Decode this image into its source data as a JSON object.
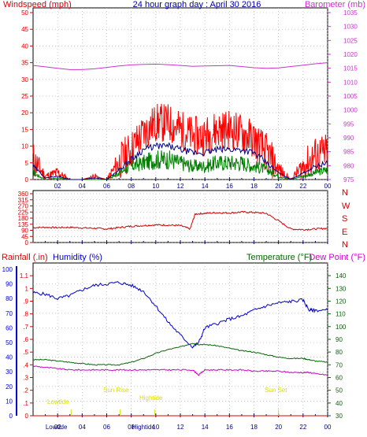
{
  "title": "24 hour graph day : April 30 2016",
  "colors": {
    "wind": "#ff0000",
    "wind_avg": "#000080",
    "gust": "#008000",
    "barometer": "#cc33cc",
    "direction": "#cc0000",
    "humidity": "#0000cc",
    "temperature": "#006600",
    "dewpoint": "#cc00cc",
    "rain": "#dd0000",
    "tide": "#dddd00",
    "frame": "#000000",
    "grid": "#aaaaaa",
    "time_tick": "#000080"
  },
  "time_labels": [
    "02",
    "04",
    "06",
    "08",
    "10",
    "12",
    "14",
    "16",
    "18",
    "20",
    "22",
    "00"
  ],
  "panel1": {
    "left_label": "Windspeed (mph)",
    "right_label": "Barometer (mb)",
    "left_ticks": [
      "0",
      "5",
      "10",
      "15",
      "20",
      "25",
      "30",
      "35",
      "40",
      "45",
      "50"
    ],
    "right_ticks": [
      "975",
      "980",
      "985",
      "990",
      "995",
      "1000",
      "1005",
      "1010",
      "1015",
      "1020",
      "1025",
      "1030",
      "1035"
    ]
  },
  "panel2": {
    "left_ticks": [
      "0",
      "45",
      "90",
      "135",
      "180",
      "225",
      "270",
      "315",
      "360"
    ],
    "directions": [
      "N",
      "W",
      "S",
      "E",
      "N"
    ]
  },
  "panel3": {
    "rain_label": "Rainfall (.in)",
    "humidity_label": "Humidity (%)",
    "temp_label": "Temperature (°F)",
    "dew_label": "Dew Point (°F)",
    "rain_ticks": [
      "0",
      ".1",
      ".2",
      ".3",
      ".4",
      ".5",
      ".6",
      ".7",
      ".8",
      ".9",
      "1",
      "1.1"
    ],
    "humidity_ticks": [
      "0",
      "10",
      "20",
      "30",
      "40",
      "50",
      "60",
      "70",
      "80",
      "90",
      "100"
    ],
    "temp_ticks": [
      "30",
      "40",
      "50",
      "60",
      "70",
      "80",
      "90",
      "100",
      "110",
      "120",
      "130",
      "140"
    ],
    "annotations": {
      "low_tide": "Lowtide",
      "sun_rise": "Sun Rise",
      "high_tide": "Hightide",
      "sun_set": "Sun Set"
    },
    "bottom_labels": {
      "lowtide": "Lowtide",
      "hightide": "Hightide"
    }
  },
  "chart_data": [
    {
      "type": "line",
      "title": "24 hour graph day : April 30 2016",
      "xlabel": "",
      "ylabel": "Windspeed (mph)",
      "y2label": "Barometer (mb)",
      "xlim": [
        0,
        24
      ],
      "ylim": [
        0,
        50
      ],
      "y2lim": [
        975,
        1035
      ],
      "x_ticks": [
        "02",
        "04",
        "06",
        "08",
        "10",
        "12",
        "14",
        "16",
        "18",
        "20",
        "22",
        "00"
      ],
      "x": [
        0,
        1,
        2,
        3,
        4,
        5,
        6,
        7,
        8,
        9,
        10,
        11,
        12,
        13,
        14,
        15,
        16,
        17,
        18,
        19,
        20,
        21,
        22,
        23,
        24
      ],
      "series": [
        {
          "name": "Wind Speed",
          "axis": "left",
          "values": [
            6,
            1,
            2,
            0,
            0,
            1,
            0,
            5,
            9,
            14,
            17,
            17,
            15,
            13,
            13,
            15,
            15,
            14,
            12,
            8,
            3,
            0,
            4,
            7,
            8
          ]
        },
        {
          "name": "Average Speed",
          "axis": "left",
          "values": [
            4,
            0.5,
            1,
            0,
            0,
            0.5,
            0,
            3,
            6,
            9,
            10,
            10,
            9,
            8,
            8,
            9,
            9,
            9,
            8,
            5,
            2,
            0,
            2,
            4,
            5
          ]
        },
        {
          "name": "Gust",
          "axis": "left",
          "values": [
            2,
            0,
            0.5,
            0,
            0,
            0,
            0,
            2,
            4,
            5,
            6,
            6,
            5,
            4,
            4,
            5,
            5,
            5,
            4,
            3,
            1,
            0,
            1,
            2,
            3
          ]
        },
        {
          "name": "Barometer",
          "axis": "right",
          "values": [
            1016,
            1015.5,
            1015,
            1014.5,
            1014.5,
            1014.8,
            1015.3,
            1015.8,
            1016.2,
            1016.4,
            1016.5,
            1016.3,
            1016,
            1015.7,
            1015.8,
            1015.9,
            1016,
            1015.6,
            1015.2,
            1015,
            1015.1,
            1015.6,
            1016.1,
            1016.6,
            1017
          ]
        }
      ]
    },
    {
      "type": "line",
      "title": "",
      "ylabel": "",
      "xlim": [
        0,
        24
      ],
      "ylim": [
        0,
        360
      ],
      "x": [
        0,
        1,
        2,
        3,
        4,
        5,
        6,
        7,
        8,
        9,
        10,
        11,
        12,
        12.8,
        13.2,
        14,
        15,
        16,
        17,
        18,
        19,
        20,
        21,
        22,
        23,
        24
      ],
      "series": [
        {
          "name": "Wind Direction",
          "values": [
            110,
            112,
            110,
            112,
            108,
            105,
            100,
            110,
            120,
            125,
            130,
            128,
            125,
            100,
            210,
            215,
            220,
            218,
            225,
            222,
            215,
            160,
            100,
            95,
            100,
            105
          ]
        }
      ]
    },
    {
      "type": "line",
      "title": "",
      "ylabel": "Humidity (%)",
      "y2label": "Temperature (°F)",
      "xlim": [
        0,
        24
      ],
      "ylim": [
        0,
        100
      ],
      "y2lim": [
        30,
        145
      ],
      "x": [
        0,
        1,
        2,
        3,
        4,
        5,
        6,
        7,
        8,
        9,
        10,
        11,
        12,
        13,
        13.5,
        14,
        15,
        16,
        17,
        18,
        19,
        20,
        21,
        22,
        22.5,
        23,
        24
      ],
      "series": [
        {
          "name": "Humidity",
          "axis": "left",
          "values": [
            84,
            83,
            80,
            82,
            86,
            89,
            90,
            91,
            89,
            85,
            75,
            64,
            55,
            47,
            50,
            60,
            63,
            66,
            68,
            72,
            75,
            77,
            78,
            79,
            72,
            72,
            72
          ]
        },
        {
          "name": "Temperature",
          "axis": "right",
          "values": [
            74,
            74,
            73,
            72,
            71,
            70,
            70,
            70,
            72,
            75,
            79,
            82,
            84,
            87,
            86,
            86,
            85,
            83,
            81,
            80,
            78,
            76,
            75,
            75,
            74,
            73,
            72
          ]
        },
        {
          "name": "Dew Point",
          "axis": "right",
          "values": [
            69,
            68,
            67,
            66,
            66,
            66,
            66,
            66,
            66,
            66,
            66,
            66,
            66,
            66,
            62,
            66,
            66,
            66,
            66,
            65,
            65,
            65,
            64,
            64,
            64,
            63,
            62
          ]
        },
        {
          "name": "Rainfall",
          "axis": "rain",
          "values": [
            0,
            0,
            0,
            0,
            0,
            0,
            0,
            0,
            0,
            0,
            0,
            0,
            0,
            0,
            0,
            0,
            0,
            0,
            0,
            0,
            0,
            0,
            0,
            0,
            0,
            0,
            0
          ]
        }
      ]
    }
  ]
}
